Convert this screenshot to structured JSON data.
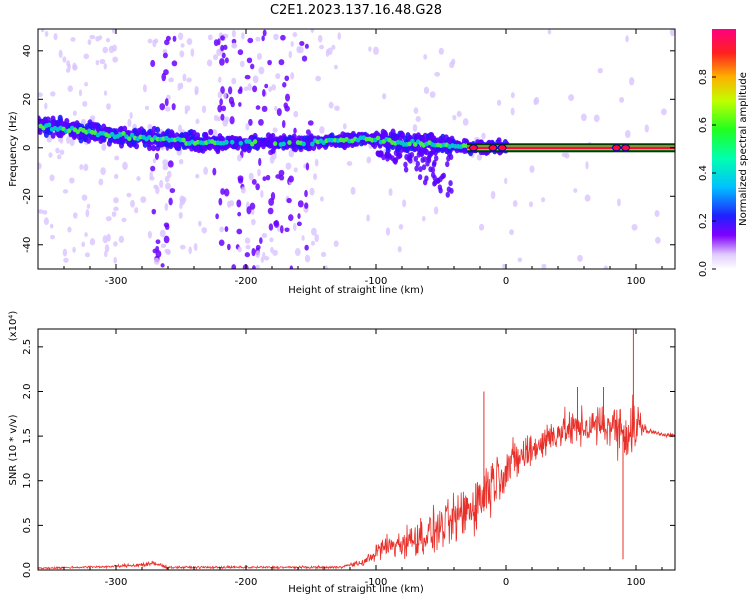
{
  "title": "C2E1.2023.137.16.48.G28",
  "colors": {
    "snr_line": "#e8302a",
    "band_core": "#ff0a3a",
    "band_outline": "#003a00",
    "speckle": "#6a00ff",
    "speckle_light": "#d9c4ff",
    "midband": "#00c8c8",
    "greenband": "#44ee44"
  },
  "chart_data": [
    {
      "type": "heatmap",
      "name": "spectrogram",
      "xlabel": "Height of straight line (km)",
      "ylabel": "Frequency (Hz)",
      "xlim": [
        -360,
        130
      ],
      "ylim": [
        -50,
        49
      ],
      "xticks": [
        -300,
        -200,
        -100,
        0,
        100
      ],
      "yticks": [
        -40,
        -20,
        0,
        20,
        40
      ],
      "grid": false,
      "colorbar": {
        "label": "Normalized spectral amplitude",
        "range": [
          0.0,
          1.0
        ],
        "ticks": [
          "0.0",
          "0.2",
          "0.4",
          "0.6",
          "0.8"
        ],
        "colormap": "rainbow"
      },
      "features": {
        "main_band_center_hz": [
          {
            "x": -355,
            "y": 9
          },
          {
            "x": -300,
            "y": 5
          },
          {
            "x": -230,
            "y": 2
          },
          {
            "x": -150,
            "y": 2
          },
          {
            "x": -110,
            "y": 4
          },
          {
            "x": -80,
            "y": 2
          },
          {
            "x": -40,
            "y": 1
          },
          {
            "x": 0,
            "y": 0
          },
          {
            "x": 130,
            "y": 0
          }
        ],
        "dense_noise_columns_km": [
          [
            -272,
            -255
          ],
          [
            -225,
            -150
          ]
        ]
      }
    },
    {
      "type": "line",
      "name": "snr",
      "xlabel": "Height of straight line (km)",
      "ylabel": "SNR (10 * v/v)",
      "ylabel_exponent": "(x10⁴)",
      "xlim": [
        -360,
        130
      ],
      "ylim": [
        0,
        2.7
      ],
      "xticks": [
        -300,
        -200,
        -100,
        0,
        100
      ],
      "yticks": [
        0.0,
        0.5,
        1.0,
        1.5,
        2.0,
        2.5
      ],
      "ytick_labels": [
        "0.0",
        "0.5",
        "1.0",
        "1.5",
        "2.0",
        "2.5"
      ],
      "grid": false,
      "series": [
        {
          "envelope_x": [
            -360,
            -300,
            -270,
            -260,
            -200,
            -130,
            -110,
            -95,
            -80,
            -60,
            -40,
            -20,
            -10,
            0,
            20,
            40,
            60,
            80,
            95,
            100,
            105,
            110,
            130
          ],
          "envelope_mid": [
            0.02,
            0.04,
            0.07,
            0.03,
            0.03,
            0.03,
            0.08,
            0.25,
            0.3,
            0.4,
            0.55,
            0.8,
            1.0,
            1.15,
            1.35,
            1.55,
            1.6,
            1.62,
            1.55,
            1.6,
            1.6,
            1.55,
            1.5
          ],
          "envelope_spread": [
            0.015,
            0.02,
            0.05,
            0.02,
            0.02,
            0.02,
            0.05,
            0.2,
            0.25,
            0.35,
            0.4,
            0.55,
            0.45,
            0.4,
            0.3,
            0.3,
            0.3,
            0.35,
            0.5,
            0.7,
            0.1,
            0.05,
            0.03
          ],
          "peaks": [
            {
              "x": -17,
              "y": 2.0
            },
            {
              "x": 98,
              "y": 2.7
            },
            {
              "x": 90,
              "y": 0.12
            },
            {
              "x": 55,
              "y": 2.05
            },
            {
              "x": 75,
              "y": 2.05
            }
          ]
        }
      ]
    }
  ]
}
